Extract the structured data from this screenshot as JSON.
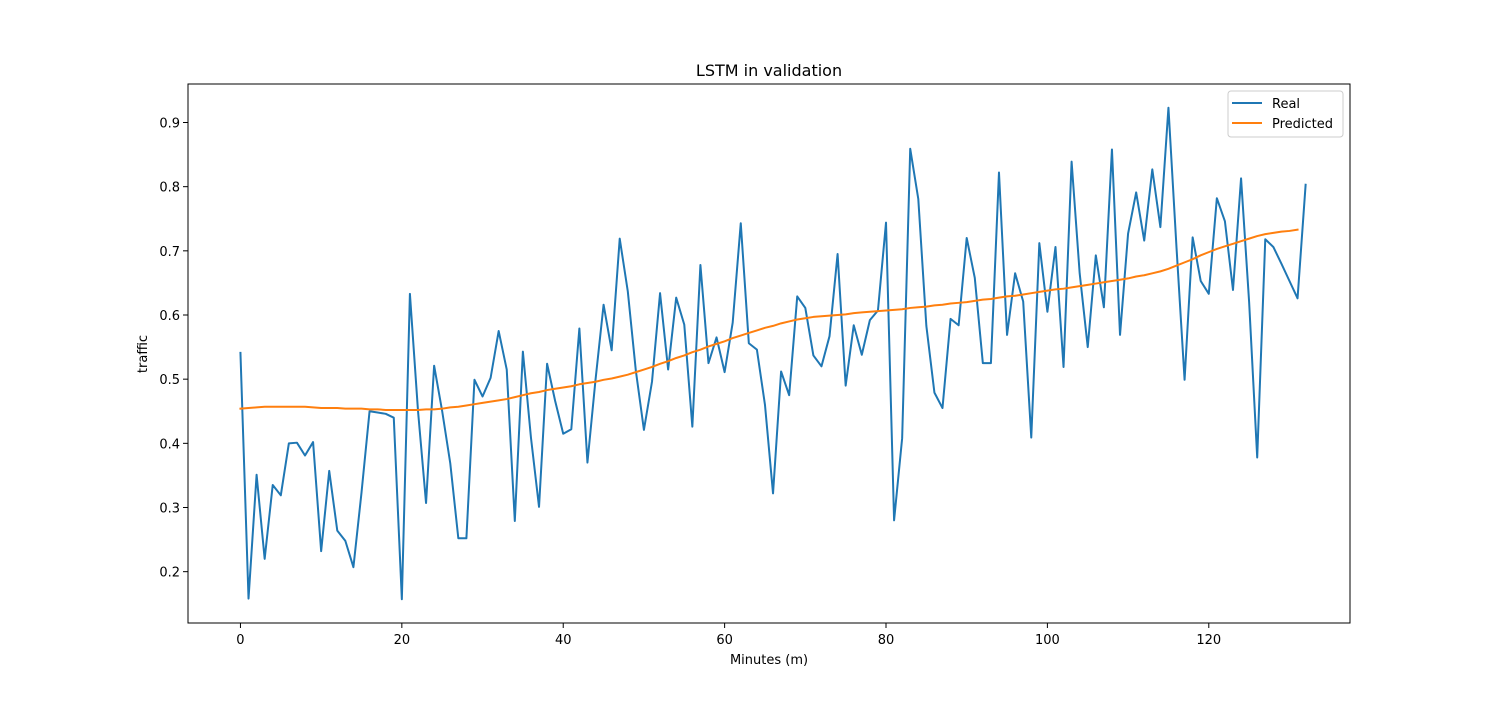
{
  "chart_data": {
    "type": "line",
    "title": "LSTM in validation",
    "xlabel": "Minutes (m)",
    "ylabel": "traffic",
    "xlim": [
      -6.5,
      137.5
    ],
    "ylim": [
      0.12,
      0.96
    ],
    "xticks": [
      0,
      20,
      40,
      60,
      80,
      100,
      120
    ],
    "xtick_labels": [
      "0",
      "20",
      "40",
      "60",
      "80",
      "100",
      "120"
    ],
    "yticks": [
      0.2,
      0.3,
      0.4,
      0.5,
      0.6,
      0.7,
      0.8,
      0.9
    ],
    "ytick_labels": [
      "0.2",
      "0.3",
      "0.4",
      "0.5",
      "0.6",
      "0.7",
      "0.8",
      "0.9"
    ],
    "grid": false,
    "legend": {
      "position": "top-right",
      "entries": [
        "Real",
        "Predicted"
      ]
    },
    "series": [
      {
        "name": "Real",
        "color": "#1f77b4",
        "values": [
          0.541,
          0.158,
          0.351,
          0.22,
          0.335,
          0.319,
          0.4,
          0.401,
          0.381,
          0.402,
          0.232,
          0.357,
          0.264,
          0.248,
          0.207,
          0.323,
          0.45,
          0.448,
          0.446,
          0.44,
          0.157,
          0.633,
          0.451,
          0.307,
          0.521,
          0.45,
          0.369,
          0.252,
          0.252,
          0.499,
          0.473,
          0.502,
          0.575,
          0.515,
          0.279,
          0.543,
          0.409,
          0.301,
          0.524,
          0.466,
          0.415,
          0.422,
          0.579,
          0.37,
          0.499,
          0.616,
          0.545,
          0.719,
          0.637,
          0.513,
          0.421,
          0.496,
          0.634,
          0.515,
          0.627,
          0.585,
          0.426,
          0.678,
          0.525,
          0.565,
          0.511,
          0.588,
          0.743,
          0.556,
          0.546,
          0.46,
          0.322,
          0.512,
          0.475,
          0.629,
          0.611,
          0.537,
          0.52,
          0.567,
          0.695,
          0.49,
          0.584,
          0.538,
          0.592,
          0.607,
          0.744,
          0.28,
          0.408,
          0.859,
          0.781,
          0.583,
          0.479,
          0.455,
          0.594,
          0.584,
          0.72,
          0.658,
          0.525,
          0.525,
          0.822,
          0.569,
          0.665,
          0.621,
          0.409,
          0.712,
          0.605,
          0.706,
          0.519,
          0.839,
          0.665,
          0.55,
          0.693,
          0.612,
          0.858,
          0.569,
          0.727,
          0.791,
          0.716,
          0.827,
          0.737,
          0.923,
          0.705,
          0.499,
          0.721,
          0.653,
          0.633,
          0.782,
          0.746,
          0.639,
          0.813,
          0.62,
          0.378,
          0.718,
          0.706,
          0.68,
          0.653,
          0.626,
          0.803
        ]
      },
      {
        "name": "Predicted",
        "color": "#ff7f0e",
        "values": [
          0.454,
          0.455,
          0.456,
          0.457,
          0.457,
          0.457,
          0.457,
          0.457,
          0.457,
          0.456,
          0.455,
          0.455,
          0.455,
          0.454,
          0.454,
          0.454,
          0.453,
          0.453,
          0.452,
          0.452,
          0.452,
          0.452,
          0.452,
          0.453,
          0.453,
          0.454,
          0.456,
          0.457,
          0.459,
          0.461,
          0.463,
          0.465,
          0.467,
          0.469,
          0.472,
          0.475,
          0.478,
          0.48,
          0.483,
          0.485,
          0.487,
          0.489,
          0.492,
          0.494,
          0.496,
          0.499,
          0.501,
          0.504,
          0.507,
          0.511,
          0.515,
          0.519,
          0.524,
          0.528,
          0.533,
          0.537,
          0.542,
          0.546,
          0.551,
          0.555,
          0.559,
          0.564,
          0.568,
          0.572,
          0.576,
          0.58,
          0.583,
          0.587,
          0.59,
          0.593,
          0.595,
          0.597,
          0.598,
          0.599,
          0.6,
          0.601,
          0.603,
          0.604,
          0.605,
          0.606,
          0.607,
          0.608,
          0.609,
          0.611,
          0.612,
          0.613,
          0.615,
          0.616,
          0.618,
          0.619,
          0.62,
          0.622,
          0.624,
          0.625,
          0.627,
          0.629,
          0.63,
          0.632,
          0.634,
          0.636,
          0.638,
          0.64,
          0.641,
          0.643,
          0.645,
          0.647,
          0.649,
          0.651,
          0.653,
          0.655,
          0.657,
          0.66,
          0.662,
          0.665,
          0.668,
          0.672,
          0.677,
          0.682,
          0.687,
          0.693,
          0.698,
          0.703,
          0.707,
          0.711,
          0.715,
          0.719,
          0.723,
          0.726,
          0.728,
          0.73,
          0.731,
          0.733
        ]
      }
    ]
  }
}
